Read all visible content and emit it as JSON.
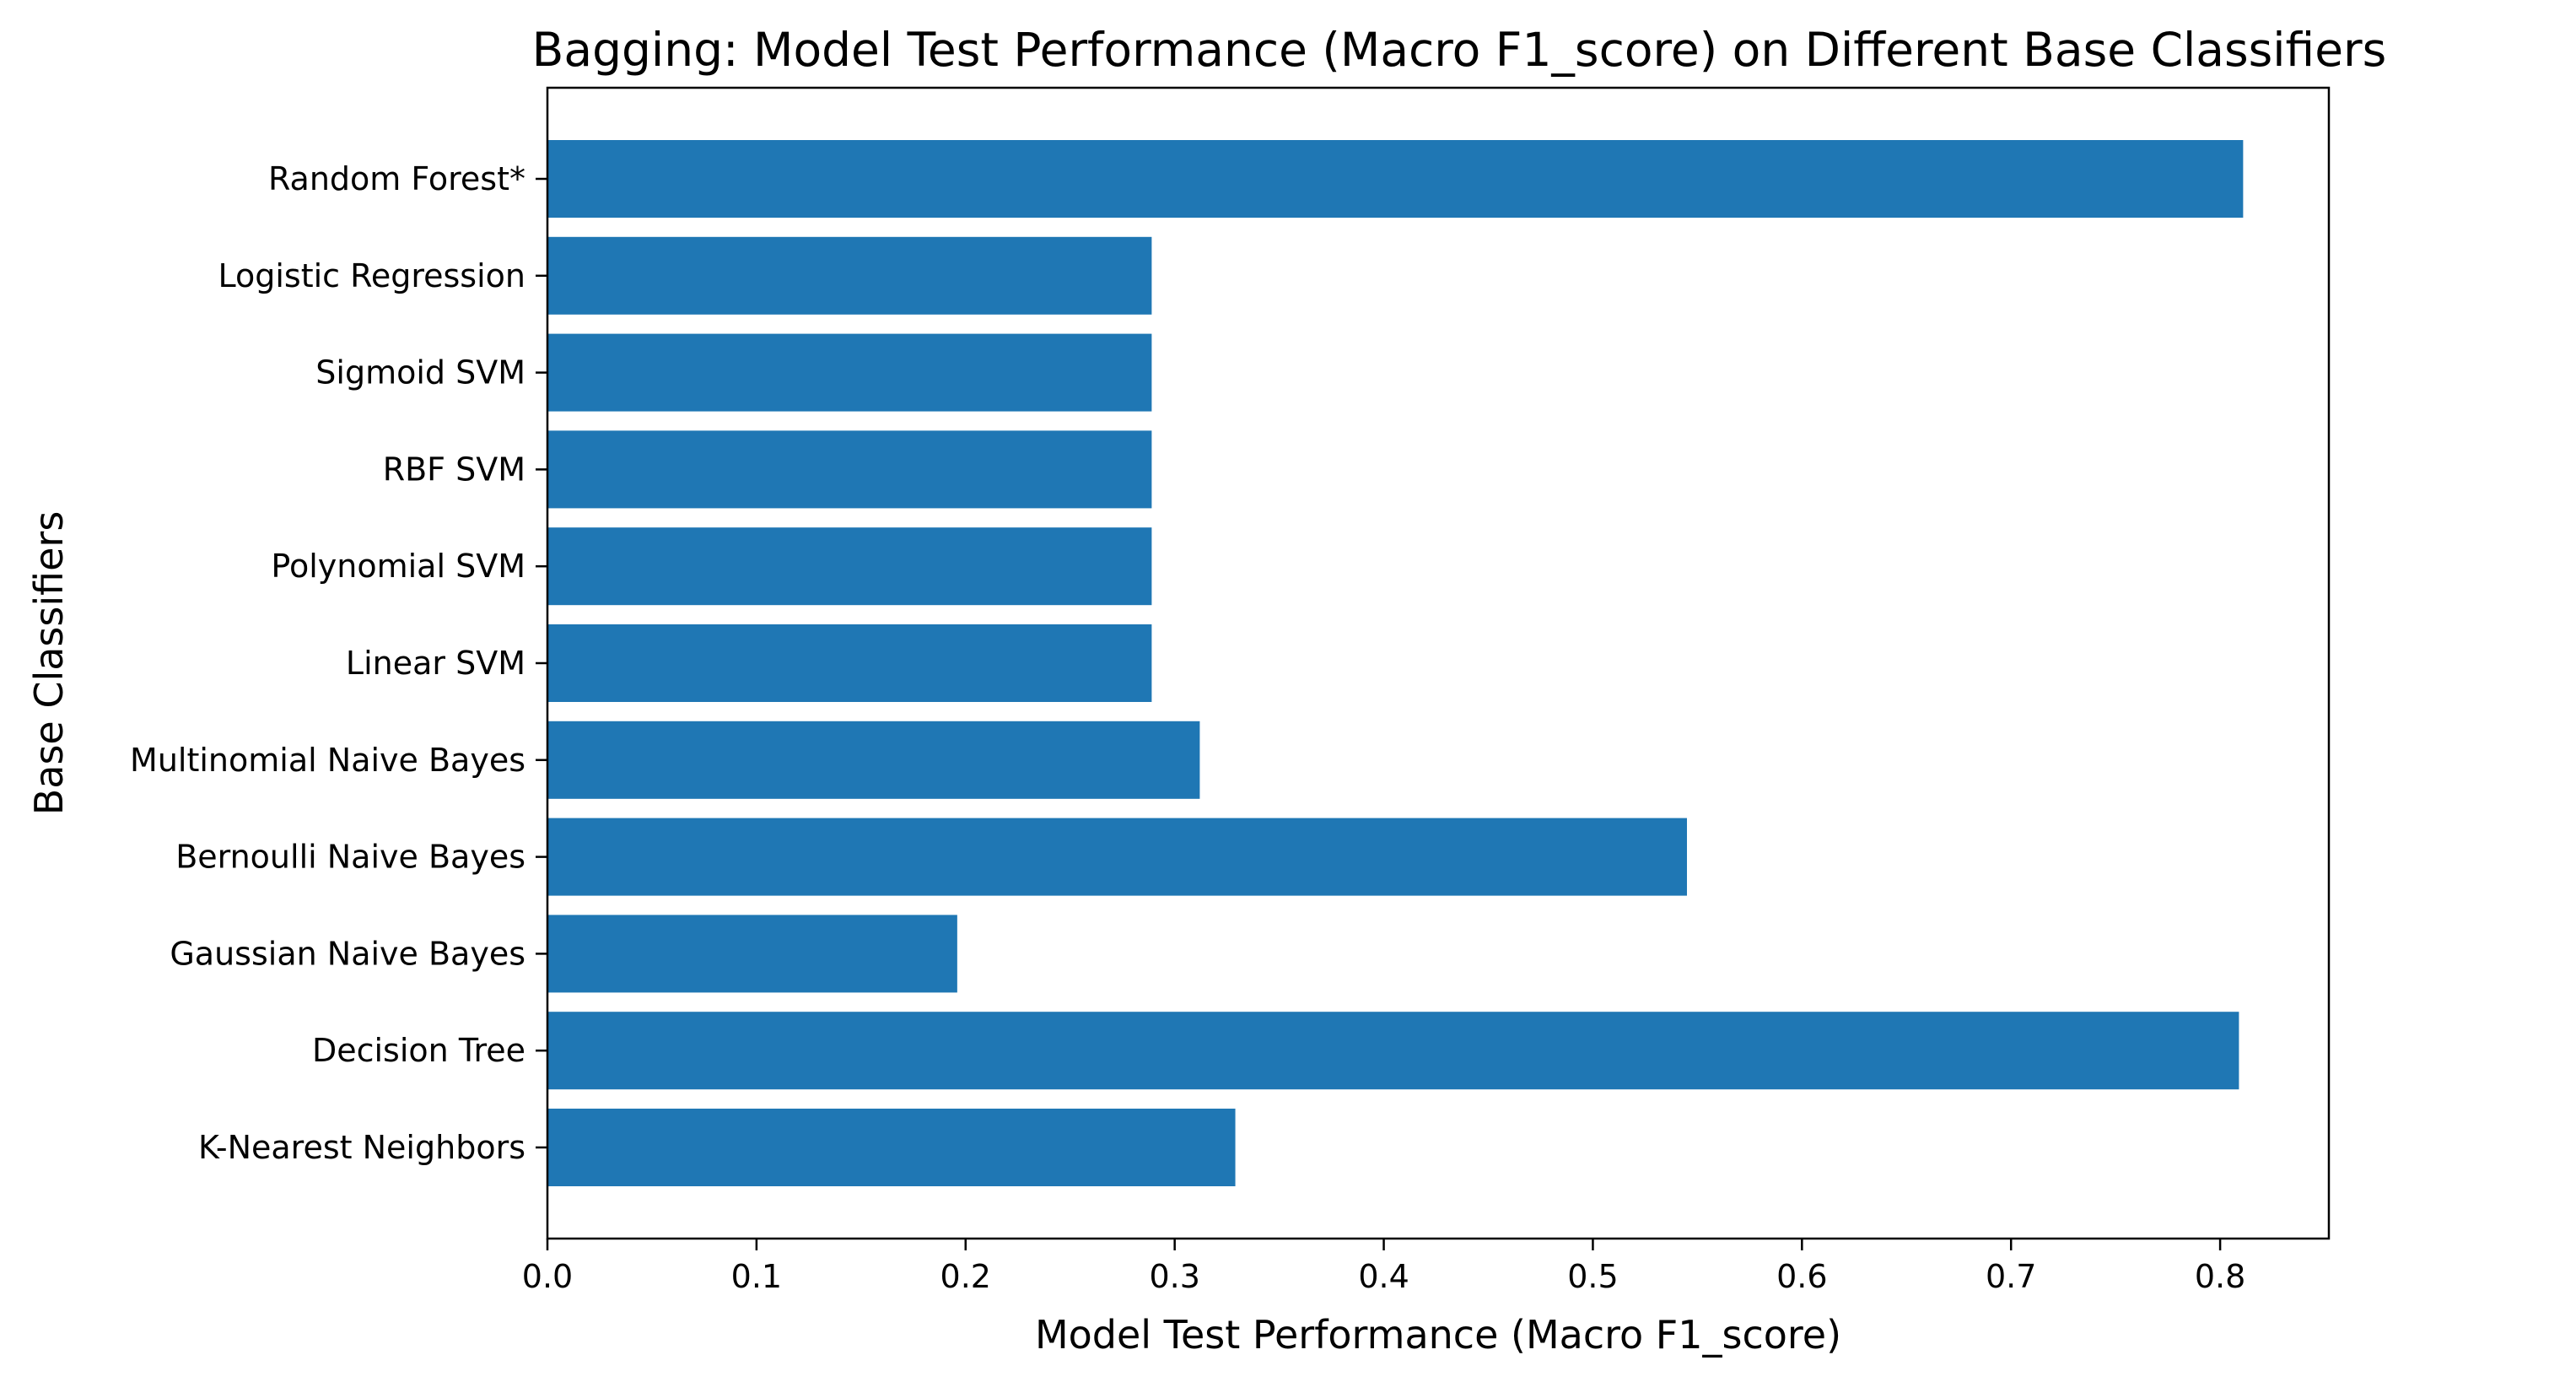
{
  "chart_data": {
    "type": "bar",
    "orientation": "horizontal",
    "title": "Bagging: Model Test Performance (Macro F1_score) on Different Base Classifiers",
    "xlabel": "Model Test Performance (Macro F1_score)",
    "ylabel": "Base Classifiers",
    "categories": [
      "K-Nearest Neighbors",
      "Decision Tree",
      "Gaussian Naive Bayes",
      "Bernoulli Naive Bayes",
      "Multinomial Naive Bayes",
      "Linear SVM",
      "Polynomial SVM",
      "RBF SVM",
      "Sigmoid SVM",
      "Logistic Regression",
      "Random Forest*"
    ],
    "values": [
      0.329,
      0.809,
      0.196,
      0.545,
      0.312,
      0.289,
      0.289,
      0.289,
      0.289,
      0.289,
      0.811
    ],
    "xlim": [
      0,
      0.852
    ],
    "xticks": [
      "0.0",
      "0.1",
      "0.2",
      "0.3",
      "0.4",
      "0.5",
      "0.6",
      "0.7",
      "0.8"
    ],
    "grid": false,
    "legend": false,
    "bar_color": "#1f77b4"
  }
}
